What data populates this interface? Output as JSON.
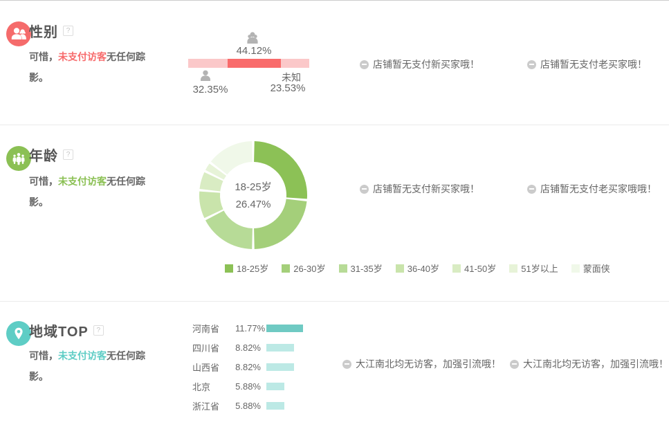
{
  "ui": {
    "help_glyph": "?"
  },
  "sections": {
    "gender": {
      "title": "性别",
      "desc_prefix": "可惜，",
      "desc_highlight": "未支付访客",
      "desc_suffix": "无任何踪影。",
      "messages": [
        "店铺暂无支付新买家哦！",
        "店铺暂无支付老买家哦！"
      ]
    },
    "age": {
      "title": "年龄",
      "desc_prefix": "可惜，",
      "desc_highlight": "未支付访客",
      "desc_suffix": "无任何踪影。",
      "messages": [
        "店铺暂无支付新买家哦！",
        "店铺暂无支付老买家哦哦！"
      ]
    },
    "region": {
      "title": "地域TOP",
      "desc_prefix": "可惜，",
      "desc_highlight": "未支付访客",
      "desc_suffix": "无任何踪影。",
      "messages": [
        "大江南北均无访客，加强引流哦！",
        "大江南北均无访客，加强引流哦！"
      ]
    }
  },
  "colors": {
    "gender_accent": "#f76b6c",
    "age_accent": "#8bc054",
    "region_accent": "#5ecdc5"
  },
  "chart_data": [
    {
      "id": "gender",
      "type": "bar",
      "variant": "stacked-horizontal",
      "title": "性别",
      "segments": [
        {
          "name": "male",
          "icon": "male-icon",
          "label": "",
          "value": 32.35,
          "display": "32.35%",
          "color": "#fbc8c9"
        },
        {
          "name": "female",
          "icon": "female-icon",
          "label": "",
          "value": 44.12,
          "display": "44.12%",
          "color": "#f96b6b"
        },
        {
          "name": "unknown",
          "icon": "",
          "label": "未知",
          "value": 23.53,
          "display": "23.53%",
          "color": "#fbc8c9"
        }
      ]
    },
    {
      "id": "age",
      "type": "pie",
      "variant": "donut",
      "title": "年龄",
      "center": {
        "label": "18-25岁",
        "value": "26.47%"
      },
      "slices": [
        {
          "label": "18-25岁",
          "value": 26.47,
          "color": "#8cc156"
        },
        {
          "label": "26-30岁",
          "value": 23.53,
          "color": "#a4cf7a"
        },
        {
          "label": "31-35岁",
          "value": 17.65,
          "color": "#b7db97"
        },
        {
          "label": "36-40岁",
          "value": 8.82,
          "color": "#c9e4ab"
        },
        {
          "label": "41-50岁",
          "value": 5.88,
          "color": "#d9ecc3"
        },
        {
          "label": "51岁以上",
          "value": 2.94,
          "color": "#e7f3d8"
        },
        {
          "label": "蒙面侠",
          "value": 14.71,
          "color": "#f0f8e9"
        }
      ]
    },
    {
      "id": "region",
      "type": "bar",
      "variant": "horizontal",
      "title": "地域TOP",
      "categories": [
        "河南省",
        "四川省",
        "山西省",
        "北京",
        "浙江省"
      ],
      "values": [
        11.77,
        8.82,
        8.82,
        5.88,
        5.88
      ],
      "displays": [
        "11.77%",
        "8.82%",
        "8.82%",
        "5.88%",
        "5.88%"
      ],
      "bar_colors": [
        "#6fcac3",
        "#bce9e5",
        "#bce9e5",
        "#bce9e5",
        "#bce9e5"
      ]
    }
  ]
}
